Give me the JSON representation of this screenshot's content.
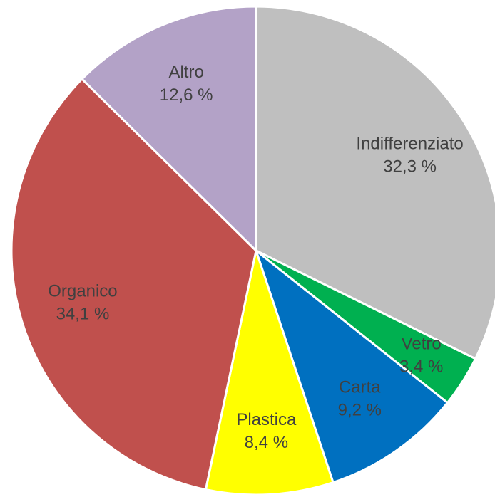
{
  "chart_data": {
    "type": "pie",
    "categories": [
      "Indifferenziato",
      "Vetro",
      "Carta",
      "Plastica",
      "Organico",
      "Altro"
    ],
    "values": [
      32.3,
      3.4,
      9.2,
      8.4,
      34.1,
      12.6
    ],
    "value_labels": [
      "32,3 %",
      "3,4 %",
      "9,2 %",
      "8,4 %",
      "34,1 %",
      "12,6 %"
    ],
    "colors": [
      "#bfbfbf",
      "#00b050",
      "#0070c0",
      "#ffff00",
      "#c0504d",
      "#b3a2c7"
    ]
  }
}
